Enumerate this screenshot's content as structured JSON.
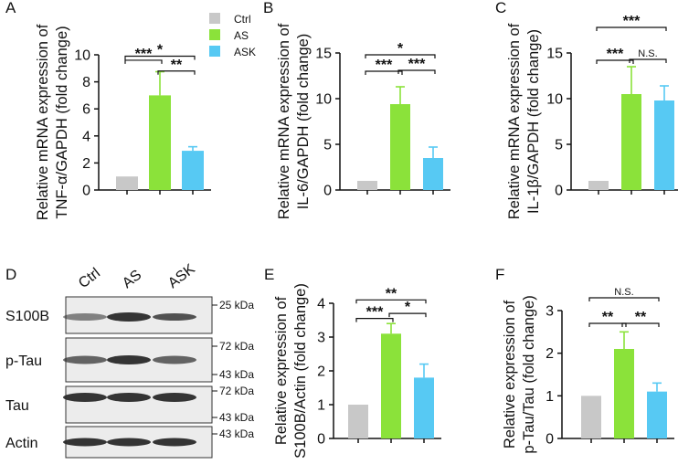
{
  "colors": {
    "ctrl": "#c8c8c8",
    "as": "#8be23a",
    "ask": "#57c9f3",
    "axis": "#111111",
    "blot_bg": "#ececec",
    "band": "#2a2a2a"
  },
  "legend": {
    "items": [
      {
        "label": "Ctrl",
        "color": "#c8c8c8"
      },
      {
        "label": "AS",
        "color": "#8be23a"
      },
      {
        "label": "ASK",
        "color": "#57c9f3"
      }
    ]
  },
  "chart_data": [
    {
      "panel": "A",
      "type": "bar",
      "categories": [
        "Ctrl",
        "AS",
        "ASK"
      ],
      "values": [
        1.0,
        7.0,
        2.9
      ],
      "errors": [
        0,
        1.75,
        0.3
      ],
      "ylabel_line1": "Relative mRNA expression of",
      "ylabel_line2": "TNF-α/GAPDH (fold change)",
      "ylim": [
        0,
        10
      ],
      "yticks": [
        "0",
        "2",
        "4",
        "6",
        "8",
        "10"
      ],
      "ytick_values": [
        0,
        2,
        4,
        6,
        8,
        10
      ],
      "significance": [
        {
          "from": 0,
          "to": 2,
          "label": "*",
          "level": 9.9
        },
        {
          "from": 0,
          "to": 1,
          "label": "***",
          "level": 9.6
        },
        {
          "from": 1,
          "to": 2,
          "label": "**",
          "level": 8.8
        }
      ]
    },
    {
      "panel": "B",
      "type": "bar",
      "categories": [
        "Ctrl",
        "AS",
        "ASK"
      ],
      "values": [
        1.0,
        9.4,
        3.5
      ],
      "errors": [
        0,
        1.9,
        1.2
      ],
      "ylabel_line1": "Relative mRNA expression of",
      "ylabel_line2": "IL-6/GAPDH (fold change)",
      "ylim": [
        0,
        15
      ],
      "yticks": [
        "0",
        "5",
        "10",
        "15"
      ],
      "ytick_values": [
        0,
        5,
        10,
        15
      ],
      "significance": [
        {
          "from": 0,
          "to": 2,
          "label": "*",
          "level": 14.8
        },
        {
          "from": 0,
          "to": 1,
          "label": "***",
          "level": 13.0
        },
        {
          "from": 1,
          "to": 2,
          "label": "***",
          "level": 13.1
        }
      ]
    },
    {
      "panel": "C",
      "type": "bar",
      "categories": [
        "Ctrl",
        "AS",
        "ASK"
      ],
      "values": [
        1.0,
        10.5,
        9.8
      ],
      "errors": [
        0,
        3.0,
        1.6
      ],
      "ylabel_line1": "Relative mRNA expression of",
      "ylabel_line2": "IL-1β/GAPDH (fold change)",
      "ylim": [
        0,
        15
      ],
      "yticks": [
        "0",
        "5",
        "10",
        "15"
      ],
      "ytick_values": [
        0,
        5,
        10,
        15
      ],
      "significance": [
        {
          "from": 0,
          "to": 2,
          "label": "***",
          "level": 17.8
        },
        {
          "from": 0,
          "to": 1,
          "label": "***",
          "level": 14.2
        },
        {
          "from": 1,
          "to": 2,
          "label": "N.S.",
          "level": 14.3
        }
      ]
    },
    {
      "panel": "E",
      "type": "bar",
      "categories": [
        "Ctrl",
        "AS",
        "ASK"
      ],
      "values": [
        1.0,
        3.1,
        1.8
      ],
      "errors": [
        0,
        0.3,
        0.4
      ],
      "ylabel_line1": "Relative expression of",
      "ylabel_line2": "S100B/Actin (fold change)",
      "ylim": [
        0,
        4
      ],
      "yticks": [
        "0",
        "1",
        "2",
        "3",
        "4"
      ],
      "ytick_values": [
        0,
        1,
        2,
        3,
        4
      ],
      "significance": [
        {
          "from": 0,
          "to": 2,
          "label": "**",
          "level": 4.1
        },
        {
          "from": 0,
          "to": 1,
          "label": "***",
          "level": 3.55
        },
        {
          "from": 1,
          "to": 2,
          "label": "*",
          "level": 3.7
        }
      ]
    },
    {
      "panel": "F",
      "type": "bar",
      "categories": [
        "Ctrl",
        "AS",
        "ASK"
      ],
      "values": [
        1.0,
        2.1,
        1.1
      ],
      "errors": [
        0,
        0.4,
        0.2
      ],
      "ylabel_line1": "Relative expression of",
      "ylabel_line2": "p-Tau/Tau (fold change)",
      "ylim": [
        0,
        3
      ],
      "yticks": [
        "0",
        "1",
        "2",
        "3"
      ],
      "ytick_values": [
        0,
        1,
        2,
        3
      ],
      "significance": [
        {
          "from": 0,
          "to": 2,
          "label": "N.S.",
          "level": 3.3
        },
        {
          "from": 0,
          "to": 1,
          "label": "**",
          "level": 2.7
        },
        {
          "from": 1,
          "to": 2,
          "label": "**",
          "level": 2.7
        }
      ]
    }
  ],
  "blot": {
    "panel": "D",
    "lanes": [
      "Ctrl",
      "AS",
      "ASK"
    ],
    "rows": [
      {
        "label": "S100B",
        "markers": [
          "25 kDa"
        ]
      },
      {
        "label": "p-Tau",
        "markers": [
          "72 kDa",
          "43 kDa"
        ]
      },
      {
        "label": "Tau",
        "markers": [
          "72 kDa",
          "43 kDa"
        ]
      },
      {
        "label": "Actin",
        "markers": [
          "43 kDa"
        ]
      }
    ]
  }
}
